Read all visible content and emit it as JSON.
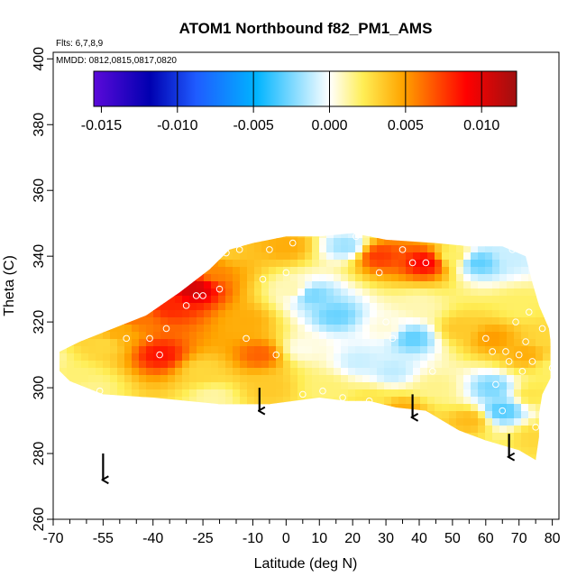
{
  "chart_data": {
    "type": "heatmap",
    "title": "ATOM1 Northbound f82_PM1_AMS",
    "subtitle_flights": "Flts: 6,7,8,9",
    "subtitle_dates": "MMDD: 0812,0815,0817,0820",
    "xlabel": "Latitude (deg N)",
    "ylabel": "Theta (C)",
    "xlim": [
      -70,
      82
    ],
    "ylim": [
      260,
      402
    ],
    "x_ticks": [
      -70,
      -55,
      -40,
      -25,
      -10,
      0,
      10,
      20,
      30,
      40,
      50,
      60,
      70,
      80
    ],
    "x_tick_labels": [
      "-70",
      "-55",
      "-40",
      "-25",
      "-10",
      "0",
      "10",
      "20",
      "30",
      "40",
      "50",
      "60",
      "70",
      "80"
    ],
    "x_minor_ticks": [
      -65,
      -60,
      -50,
      -45,
      -35,
      -30,
      -20,
      -15,
      -5,
      5,
      15,
      25,
      35,
      45,
      55,
      65,
      75
    ],
    "y_ticks": [
      260,
      280,
      300,
      320,
      340,
      360,
      380,
      400
    ],
    "y_tick_labels": [
      "260",
      "280",
      "300",
      "320",
      "340",
      "360",
      "380",
      "400"
    ],
    "colorbar": {
      "range": [
        -0.0155,
        0.0123
      ],
      "ticks": [
        -0.015,
        -0.01,
        -0.005,
        0,
        0.005,
        0.01
      ],
      "tick_labels": [
        "-0.015",
        "-0.010",
        "-0.005",
        "0.000",
        "0.005",
        "0.010"
      ]
    },
    "field_nodes": [
      {
        "lat": -73,
        "theta": 309,
        "value": 0.001
      },
      {
        "lat": -62,
        "theta": 303,
        "value": 0.0018
      },
      {
        "lat": -58,
        "theta": 300,
        "value": 0.0015
      },
      {
        "lat": -55,
        "theta": 313,
        "value": 0.003
      },
      {
        "lat": -50,
        "theta": 317,
        "value": 0.0045
      },
      {
        "lat": -45,
        "theta": 321,
        "value": 0.006
      },
      {
        "lat": -38,
        "theta": 310,
        "value": 0.0085
      },
      {
        "lat": -35,
        "theta": 325,
        "value": 0.008
      },
      {
        "lat": -28,
        "theta": 330,
        "value": 0.0105
      },
      {
        "lat": -22,
        "theta": 336,
        "value": 0.0055
      },
      {
        "lat": -18,
        "theta": 341,
        "value": 0.0035
      },
      {
        "lat": -25,
        "theta": 305,
        "value": 0.003
      },
      {
        "lat": -22,
        "theta": 297,
        "value": 0.0012
      },
      {
        "lat": -12,
        "theta": 320,
        "value": 0.0045
      },
      {
        "lat": -8,
        "theta": 310,
        "value": 0.0065
      },
      {
        "lat": -5,
        "theta": 300,
        "value": 0.0035
      },
      {
        "lat": 0,
        "theta": 343,
        "value": 0.0045
      },
      {
        "lat": 2,
        "theta": 330,
        "value": 0.001
      },
      {
        "lat": 5,
        "theta": 312,
        "value": 0.0003
      },
      {
        "lat": 8,
        "theta": 328,
        "value": -0.0025
      },
      {
        "lat": 12,
        "theta": 300,
        "value": 0.0018
      },
      {
        "lat": 15,
        "theta": 322,
        "value": -0.0028
      },
      {
        "lat": 18,
        "theta": 343,
        "value": -0.0018
      },
      {
        "lat": 22,
        "theta": 308,
        "value": -0.001
      },
      {
        "lat": 25,
        "theta": 296,
        "value": 0.0025
      },
      {
        "lat": 28,
        "theta": 340,
        "value": 0.0075
      },
      {
        "lat": 30,
        "theta": 318,
        "value": 0.0005
      },
      {
        "lat": 32,
        "theta": 305,
        "value": -0.0012
      },
      {
        "lat": 35,
        "theta": 293,
        "value": 0.0045
      },
      {
        "lat": 38,
        "theta": 315,
        "value": -0.003
      },
      {
        "lat": 40,
        "theta": 325,
        "value": 0.001
      },
      {
        "lat": 42,
        "theta": 338,
        "value": 0.009
      },
      {
        "lat": 45,
        "theta": 300,
        "value": 0.0015
      },
      {
        "lat": 50,
        "theta": 340,
        "value": 0.002
      },
      {
        "lat": 52,
        "theta": 318,
        "value": 0.0035
      },
      {
        "lat": 55,
        "theta": 290,
        "value": 0.004
      },
      {
        "lat": 58,
        "theta": 338,
        "value": -0.003
      },
      {
        "lat": 62,
        "theta": 315,
        "value": 0.005
      },
      {
        "lat": 62,
        "theta": 300,
        "value": -0.0025
      },
      {
        "lat": 65,
        "theta": 293,
        "value": -0.0032
      },
      {
        "lat": 68,
        "theta": 340,
        "value": -0.001
      },
      {
        "lat": 70,
        "theta": 325,
        "value": 0.002
      },
      {
        "lat": 72,
        "theta": 310,
        "value": 0.0045
      },
      {
        "lat": 74,
        "theta": 298,
        "value": 0.0025
      },
      {
        "lat": 75,
        "theta": 285,
        "value": 0.003
      },
      {
        "lat": 78,
        "theta": 315,
        "value": 0.003
      },
      {
        "lat": 80,
        "theta": 306,
        "value": 0.002
      }
    ],
    "sample_points": [
      [
        -56,
        299
      ],
      [
        -48,
        315
      ],
      [
        -41,
        315
      ],
      [
        -38,
        310
      ],
      [
        -36,
        318
      ],
      [
        -30,
        325
      ],
      [
        -27,
        328
      ],
      [
        -25,
        328
      ],
      [
        -20,
        330
      ],
      [
        -18,
        341
      ],
      [
        -14,
        342
      ],
      [
        -12,
        315
      ],
      [
        -7,
        333
      ],
      [
        -3,
        310
      ],
      [
        -5,
        342
      ],
      [
        0,
        335
      ],
      [
        2,
        344
      ],
      [
        5,
        298
      ],
      [
        11,
        299
      ],
      [
        17,
        297
      ],
      [
        21,
        346
      ],
      [
        25,
        296
      ],
      [
        28,
        335
      ],
      [
        30,
        320
      ],
      [
        32,
        315
      ],
      [
        35,
        342
      ],
      [
        38,
        338
      ],
      [
        42,
        338
      ],
      [
        44,
        305
      ],
      [
        60,
        315
      ],
      [
        62,
        311
      ],
      [
        63,
        301
      ],
      [
        65,
        293
      ],
      [
        66,
        311
      ],
      [
        67,
        308
      ],
      [
        68,
        342
      ],
      [
        69,
        320
      ],
      [
        70,
        310
      ],
      [
        71,
        305
      ],
      [
        72,
        314
      ],
      [
        73,
        323
      ],
      [
        74,
        308
      ],
      [
        75,
        288
      ],
      [
        77,
        318
      ],
      [
        80,
        306
      ]
    ],
    "region_boundary": [
      [
        -72,
        309
      ],
      [
        -62,
        314
      ],
      [
        -52,
        318
      ],
      [
        -42,
        322
      ],
      [
        -32,
        329
      ],
      [
        -23,
        336
      ],
      [
        -17,
        342
      ],
      [
        -10,
        344
      ],
      [
        0,
        346
      ],
      [
        10,
        346
      ],
      [
        20,
        347
      ],
      [
        30,
        345
      ],
      [
        45,
        344
      ],
      [
        55,
        343
      ],
      [
        65,
        343
      ],
      [
        72,
        340
      ],
      [
        74,
        332
      ],
      [
        76,
        325
      ],
      [
        79,
        318
      ],
      [
        80,
        310
      ],
      [
        80,
        304
      ],
      [
        77,
        298
      ],
      [
        76,
        292
      ],
      [
        76,
        285
      ],
      [
        75,
        278
      ],
      [
        70,
        281
      ],
      [
        60,
        284
      ],
      [
        52,
        287
      ],
      [
        42,
        293
      ],
      [
        33,
        294
      ],
      [
        25,
        296
      ],
      [
        18,
        296
      ],
      [
        10,
        297
      ],
      [
        -5,
        295
      ],
      [
        -20,
        295
      ],
      [
        -40,
        297
      ],
      [
        -55,
        298
      ],
      [
        -65,
        302
      ]
    ],
    "arrows": [
      {
        "lat": -55,
        "theta_start": 280,
        "theta_end": 272
      },
      {
        "lat": -8,
        "theta_start": 300,
        "theta_end": 293
      },
      {
        "lat": 38,
        "theta_start": 298,
        "theta_end": 291
      },
      {
        "lat": 67,
        "theta_start": 286,
        "theta_end": 279
      }
    ],
    "colors": {
      "gradient": [
        "#5b0ad9",
        "#0000b0",
        "#1f5bff",
        "#00b4ff",
        "#ffffff",
        "#ffee55",
        "#ffa500",
        "#ff0000",
        "#a01010"
      ],
      "point_stroke": "#ffffff",
      "arrow": "#000000"
    }
  }
}
